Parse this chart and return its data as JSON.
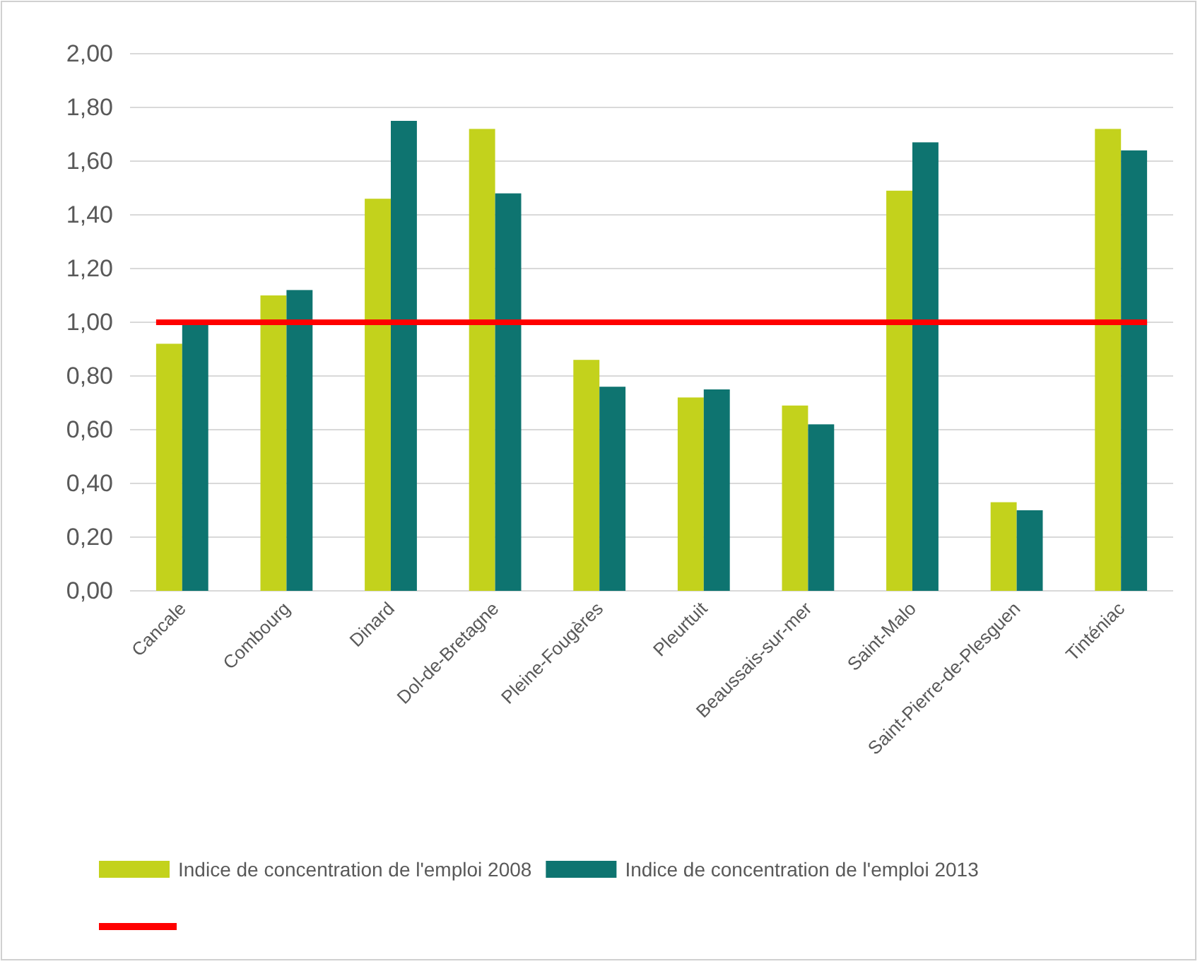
{
  "chart_data": {
    "type": "bar",
    "categories": [
      "Cancale",
      "Combourg",
      "Dinard",
      "Dol-de-Bretagne",
      "Pleine-Fougères",
      "Pleurtuit",
      "Beaussais-sur-mer",
      "Saint-Malo",
      "Saint-Pierre-de-Plesguen",
      "Tinténiac"
    ],
    "series": [
      {
        "name": "Indice de concentration de l'emploi 2008",
        "color": "#c3d21c",
        "values": [
          0.92,
          1.1,
          1.46,
          1.72,
          0.86,
          0.72,
          0.69,
          1.49,
          0.33,
          1.72
        ]
      },
      {
        "name": "Indice de concentration de l'emploi 2013",
        "color": "#0e7470",
        "values": [
          1.0,
          1.12,
          1.75,
          1.48,
          0.76,
          0.75,
          0.62,
          1.67,
          0.3,
          1.64
        ]
      }
    ],
    "ylim": [
      0,
      2
    ],
    "yticks": [
      {
        "value": 0,
        "label": "0,00"
      },
      {
        "value": 0.2,
        "label": "0,20"
      },
      {
        "value": 0.4,
        "label": "0,40"
      },
      {
        "value": 0.6,
        "label": "0,60"
      },
      {
        "value": 0.8,
        "label": "0,80"
      },
      {
        "value": 1,
        "label": "1,00"
      },
      {
        "value": 1.2,
        "label": "1,20"
      },
      {
        "value": 1.4,
        "label": "1,40"
      },
      {
        "value": 1.6,
        "label": "1,60"
      },
      {
        "value": 1.8,
        "label": "1,80"
      },
      {
        "value": 2,
        "label": "2,00"
      }
    ],
    "grid": "y",
    "legend": "bottom",
    "ref_lines": [
      {
        "axis": "y",
        "value": 1,
        "color": "#ff0000"
      }
    ]
  }
}
